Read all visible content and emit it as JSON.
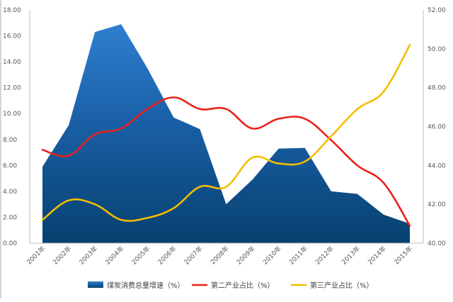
{
  "chart_data": {
    "type": "area+line",
    "title": "",
    "xlabel": "",
    "ylabel_left": "",
    "ylabel_right": "",
    "categories": [
      "2001年",
      "2002年",
      "2003年",
      "2004年",
      "2005年",
      "2006年",
      "2007年",
      "2008年",
      "2009年",
      "2010年",
      "2011年",
      "2012年",
      "2013年",
      "2014年",
      "2015年"
    ],
    "ylim_left": [
      0,
      18
    ],
    "ylim_right": [
      40,
      52
    ],
    "left_ticks": [
      "0.00",
      "2.00",
      "4.00",
      "6.00",
      "8.00",
      "10.00",
      "12.00",
      "14.00",
      "16.00",
      "18.00"
    ],
    "right_ticks": [
      "40.00",
      "42.00",
      "44.00",
      "46.00",
      "48.00",
      "50.00",
      "52.00"
    ],
    "grid": false,
    "legend_position": "bottom",
    "series": [
      {
        "name": "煤炭消费总量增速（%）",
        "type": "area",
        "axis": "left",
        "color": "#1f6fbf",
        "values": [
          5.9,
          9.1,
          16.3,
          16.9,
          13.5,
          9.7,
          8.8,
          3.0,
          4.9,
          7.3,
          7.35,
          4.0,
          3.8,
          2.2,
          1.5
        ]
      },
      {
        "name": "第二产业占比（%）",
        "type": "line",
        "axis": "right",
        "color": "#e8211a",
        "values": [
          44.8,
          44.5,
          45.6,
          45.9,
          46.9,
          47.5,
          46.9,
          46.9,
          45.9,
          46.4,
          46.4,
          45.3,
          44.0,
          43.1,
          40.9
        ]
      },
      {
        "name": "第三产业占比（%）",
        "type": "line",
        "axis": "right",
        "color": "#f2bd00",
        "values": [
          41.2,
          42.2,
          42.0,
          41.2,
          41.3,
          41.8,
          42.9,
          42.9,
          44.4,
          44.1,
          44.2,
          45.5,
          46.9,
          47.8,
          50.2
        ]
      }
    ]
  }
}
